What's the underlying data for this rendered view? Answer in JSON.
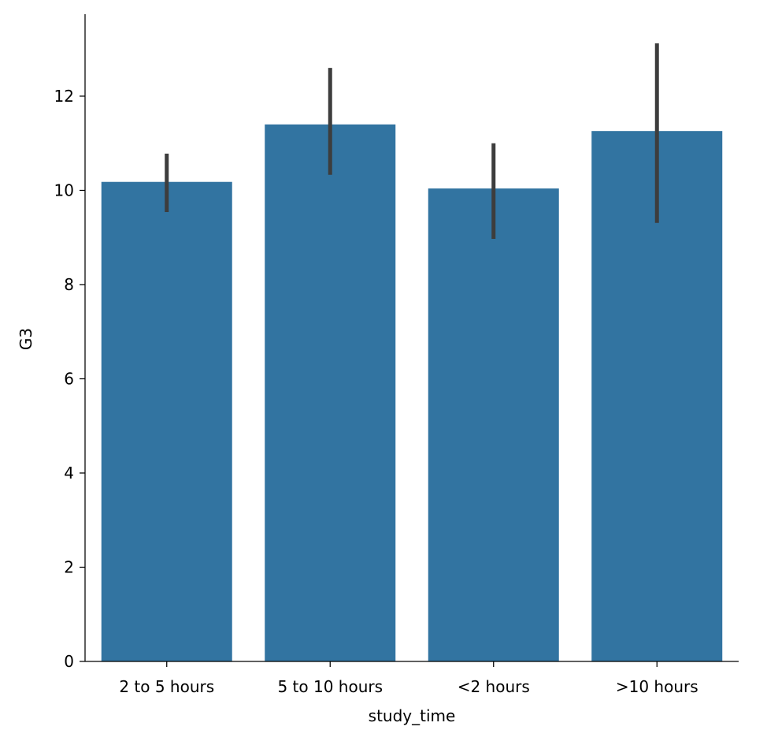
{
  "chart_data": {
    "type": "bar",
    "title": "",
    "xlabel": "study_time",
    "ylabel": "G3",
    "categories": [
      "2 to 5 hours",
      "5 to 10 hours",
      "<2 hours",
      ">10 hours"
    ],
    "values": [
      10.18,
      11.4,
      10.04,
      11.26
    ],
    "error_low": [
      9.54,
      10.33,
      8.97,
      9.31
    ],
    "error_high": [
      10.78,
      12.6,
      11.0,
      13.12
    ],
    "ylim": [
      0,
      13.74
    ],
    "yticks": [
      0,
      2,
      4,
      6,
      8,
      10,
      12
    ],
    "grid": false,
    "bar_color": "#3274a1",
    "error_color": "#3d3d3d"
  }
}
